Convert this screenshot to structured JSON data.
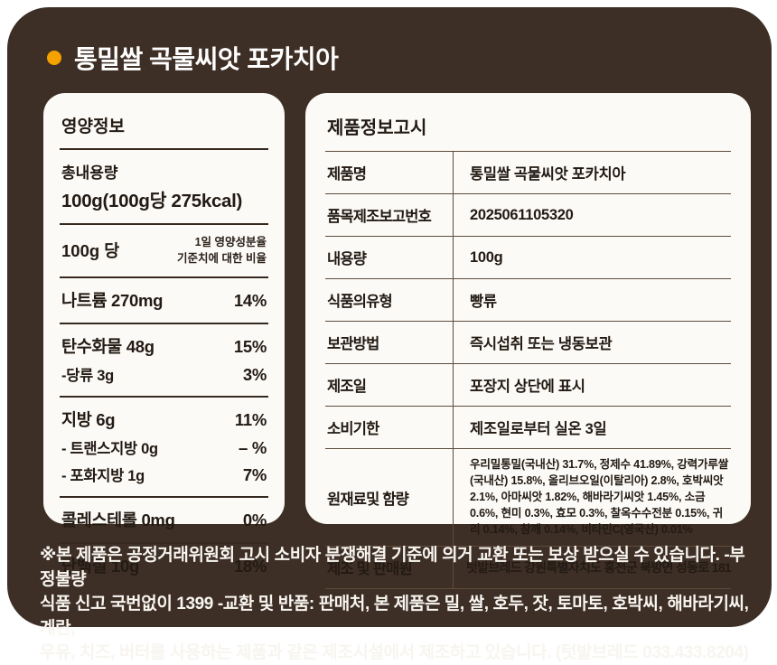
{
  "title": "통밀쌀 곡물씨앗 포카치아",
  "colors": {
    "card_background": "#3E2F26",
    "panel_background": "#FCFAF6",
    "accent_dot": "#F5A201",
    "text_dark": "#221A13",
    "text_light": "#F8F5F0"
  },
  "nutrition": {
    "header": "영양정보",
    "total_label": "총내용량",
    "total_value": "100g(100g당 275kcal)",
    "serving_label": "100g 당",
    "daily_note_line1": "1일 영양성분율",
    "daily_note_line2": "기준치에 대한 비율",
    "rows": [
      {
        "name": "나트륨 270mg",
        "percent": "14%"
      },
      {
        "name": "탄수화물 48g",
        "percent": "15%"
      },
      {
        "name": "-당류 3g",
        "percent": "3%"
      },
      {
        "name": "지방 6g",
        "percent": "11%"
      },
      {
        "name": "- 트랜스지방 0g",
        "percent": "– %"
      },
      {
        "name": "- 포화지방 1g",
        "percent": "7%"
      },
      {
        "name": "콜레스테롤 0mg",
        "percent": "0%"
      },
      {
        "name": "단백질 10g",
        "percent": "18%"
      }
    ]
  },
  "product": {
    "header": "제품정보고시",
    "rows": [
      {
        "label": "제품명",
        "value": "통밀쌀 곡물씨앗 포카치아"
      },
      {
        "label": "품목제조보고번호",
        "value": "2025061105320"
      },
      {
        "label": "내용량",
        "value": "100g"
      },
      {
        "label": "식품의유형",
        "value": "빵류"
      },
      {
        "label": "보관방법",
        "value": "즉시섭취 또는 냉동보관"
      },
      {
        "label": "제조일",
        "value": "포장지 상단에 표시"
      },
      {
        "label": "소비기한",
        "value": "제조일로부터 실온 3일"
      },
      {
        "label": "원재료및 함량",
        "value": "우리밀통밀(국내산) 31.7%, 정제수 41.89%, 강력가루쌀(국내산) 15.8%, 올리브오일(이탈리아) 2.8%, 호박씨앗 2.1%, 아마씨앗 1.82%, 해바라기씨앗 1.45%, 소금 0.6%, 현미 0.3%, 효모 0.3%, 찰옥수수전분 0.15%, 귀리 0.14%, 참깨 0.14%, 비타민C(영국산) 0.01%"
      },
      {
        "label": "제조 및 판매원",
        "value": "텃밭브레드  강원특별자치도 홍천군 북방면 성동로 181"
      }
    ]
  },
  "footer": {
    "lines": [
      "※본 제품은 공정거래위원회 고시 소비자 분쟁해결 기준에 의거 교환 또는 보상 받으실 수 있습니다. -부정불량",
      "식품 신고 국번없이 1399 -교환 및 반품: 판매처, 본 제품은 밀, 쌀, 호두, 잣, 토마토, 호박씨, 해바라기씨, 계란,",
      "우유, 치즈, 버터를 사용하는 제품과 같은 제조시설에서 제조하고 있습니다. (텃밭브레드 033.433.8204)"
    ]
  }
}
